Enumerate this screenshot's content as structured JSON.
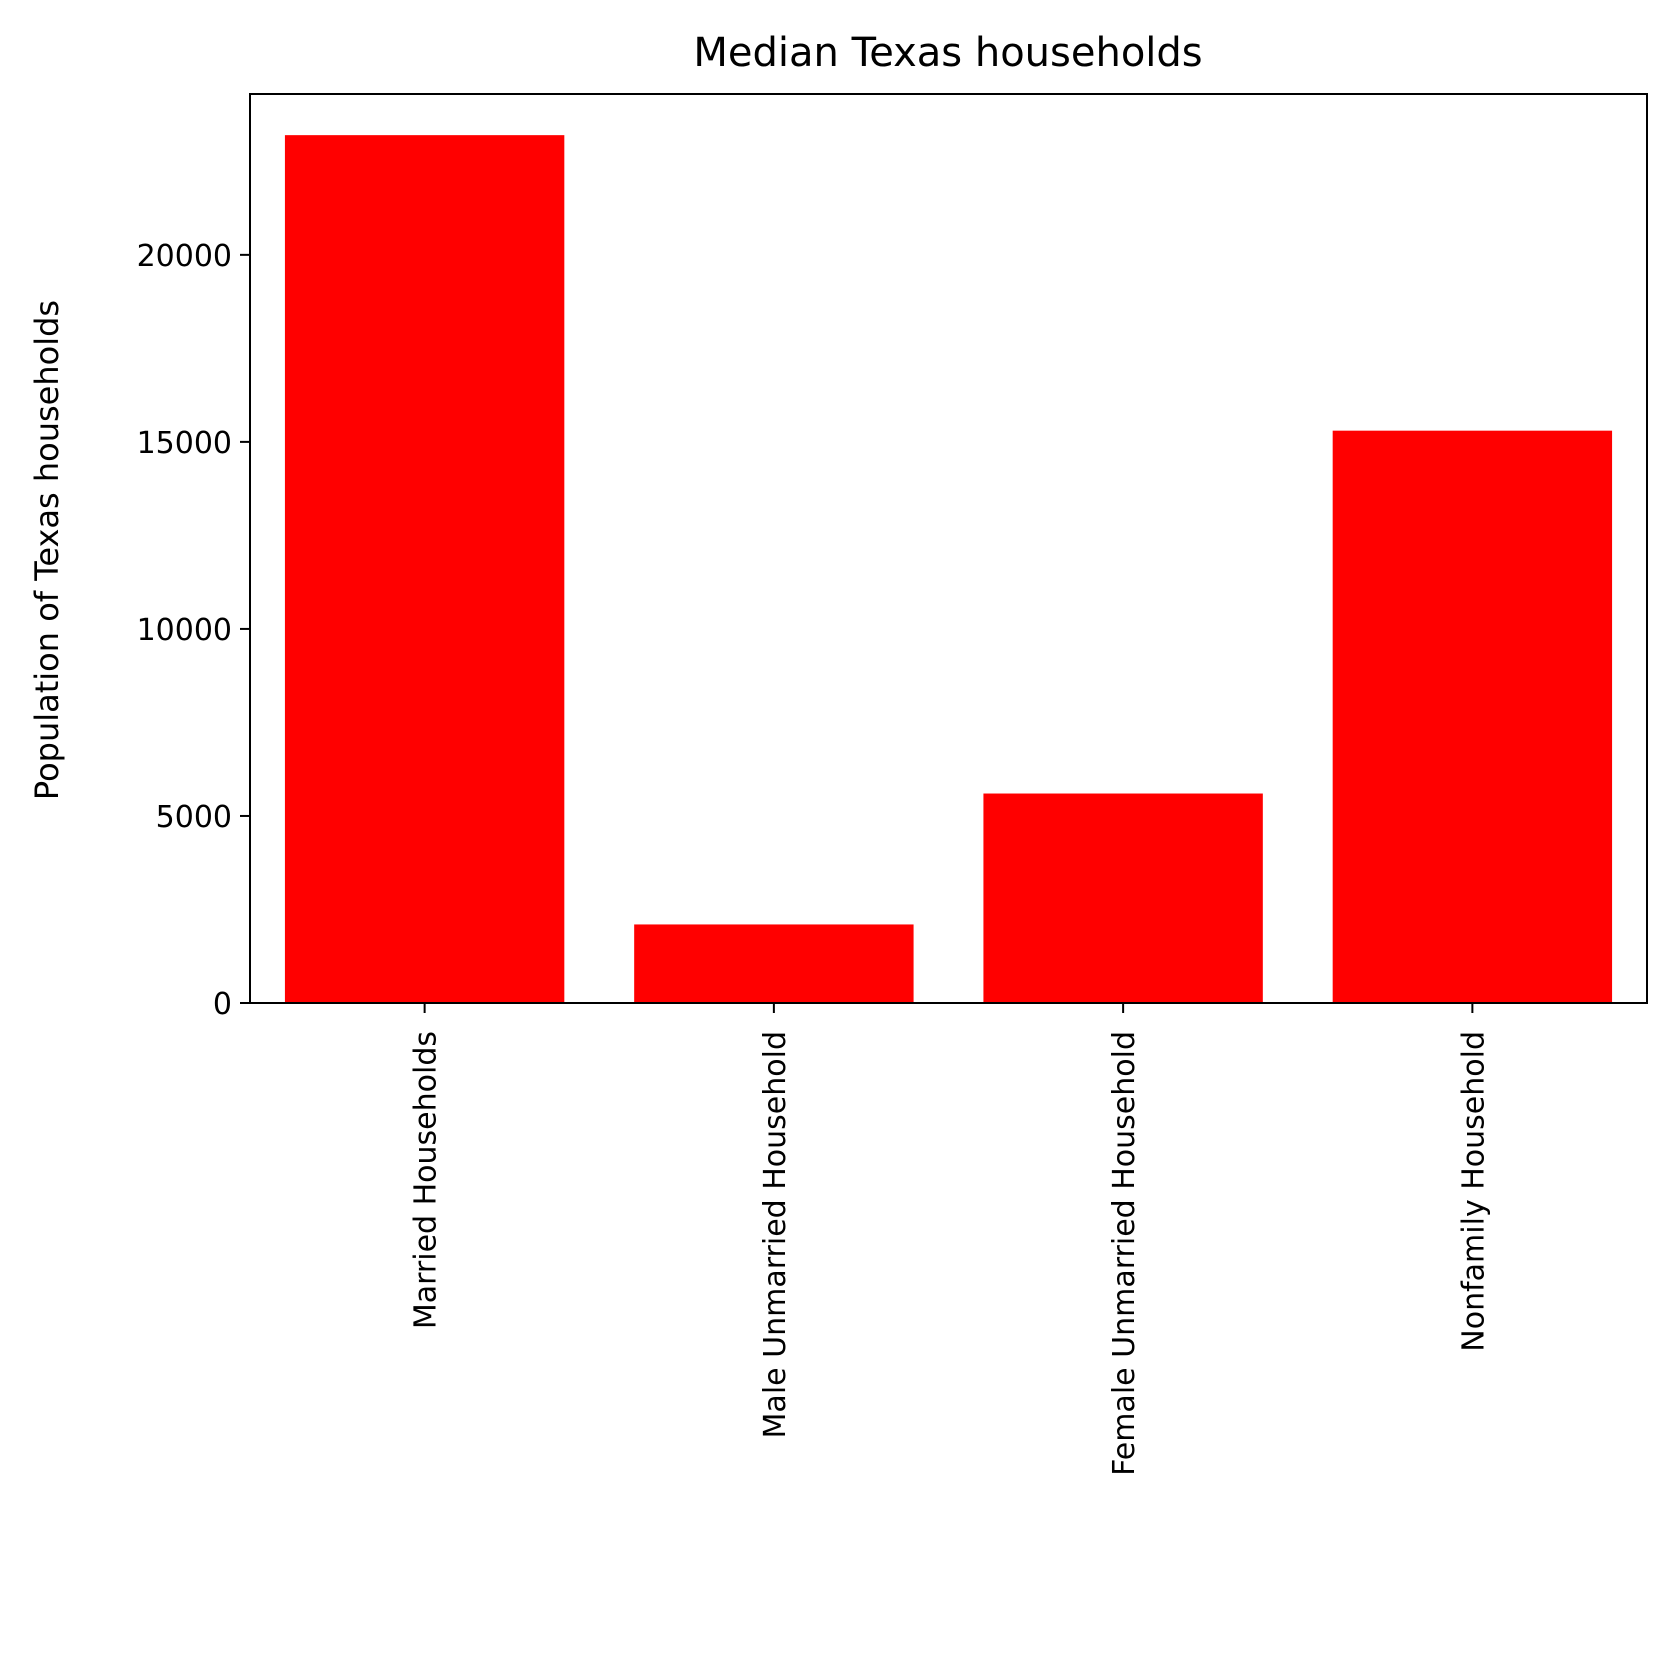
{
  "chart_data": {
    "type": "bar",
    "title": "Median Texas households",
    "xlabel": "",
    "ylabel": "Population of Texas households",
    "categories": [
      "Married Households",
      "Male Unmarried Household",
      "Female Unmarried Household",
      "Nonfamily Household"
    ],
    "values": [
      23200,
      2100,
      5600,
      15300
    ],
    "ylim": [
      0,
      24300
    ],
    "yticks": [
      0,
      5000,
      10000,
      15000,
      20000
    ],
    "ytick_labels": [
      "0",
      "5000",
      "10000",
      "15000",
      "20000"
    ],
    "bar_color": "#ff0000",
    "grid": false,
    "legend": "none"
  }
}
